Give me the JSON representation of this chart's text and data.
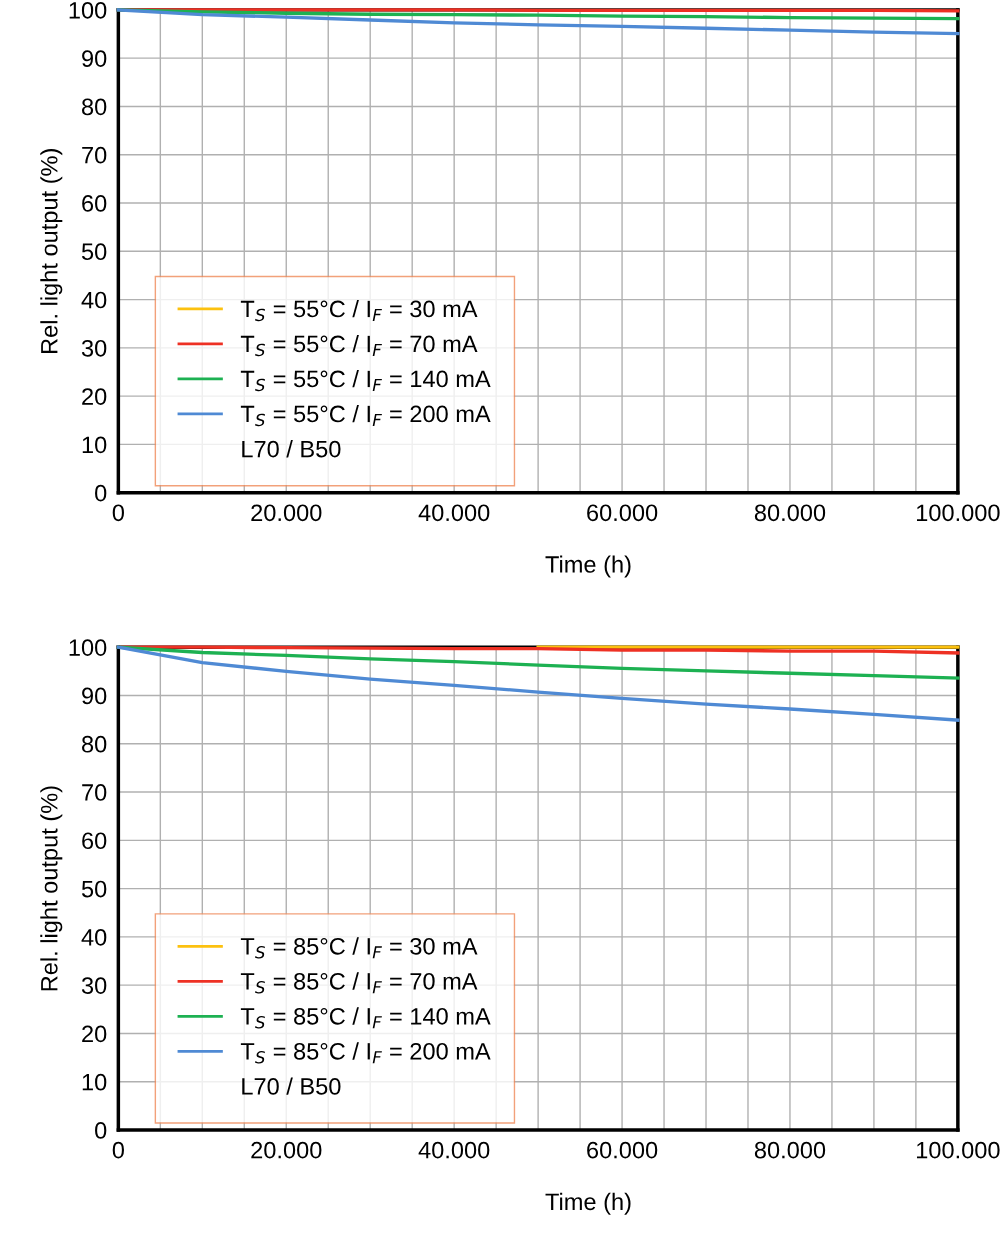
{
  "chart_data": [
    {
      "type": "line",
      "xlabel": "Time (h)",
      "ylabel": "Rel. light output (%)",
      "xlim": [
        0,
        100000
      ],
      "ylim": [
        0,
        100
      ],
      "xticks": [
        0,
        {
          "value": 5000,
          "label": null
        },
        {
          "value": 10000,
          "label": null
        },
        {
          "value": 15000,
          "label": null
        },
        {
          "value": 20000,
          "label": "20.000"
        },
        {
          "value": 25000,
          "label": null
        },
        {
          "value": 30000,
          "label": null
        },
        {
          "value": 35000,
          "label": null
        },
        {
          "value": 40000,
          "label": "40.000"
        },
        {
          "value": 45000,
          "label": null
        },
        {
          "value": 50000,
          "label": null
        },
        {
          "value": 55000,
          "label": null
        },
        {
          "value": 60000,
          "label": "60.000"
        },
        {
          "value": 65000,
          "label": null
        },
        {
          "value": 70000,
          "label": null
        },
        {
          "value": 75000,
          "label": null
        },
        {
          "value": 80000,
          "label": "80.000"
        },
        {
          "value": 85000,
          "label": null
        },
        {
          "value": 90000,
          "label": null
        },
        {
          "value": 95000,
          "label": null
        },
        {
          "value": 100000,
          "label": "100.000"
        }
      ],
      "yticks": [
        0,
        10,
        20,
        30,
        40,
        50,
        60,
        70,
        80,
        90,
        100
      ],
      "grid": true,
      "legend": "bottom left",
      "line_style": "solid",
      "marker": "none",
      "x": [
        0,
        10000,
        20000,
        30000,
        40000,
        50000,
        60000,
        70000,
        80000,
        90000,
        100000
      ],
      "series": [
        {
          "name": "T$_{S}$ = 55°C / I$_{F}$ = 30 mA",
          "color": "#fcc10f",
          "values": [
            null,
            null,
            null,
            null,
            null,
            null,
            null,
            null,
            null,
            null,
            null
          ]
        },
        {
          "name": "T$_{S}$ = 55°C / I$_{F}$ = 70 mA",
          "color": "#ee3124",
          "values": [
            100,
            100,
            100,
            100,
            100,
            99.9,
            99.9,
            99.9,
            99.9,
            99.9,
            99.8
          ]
        },
        {
          "name": "T$_{S}$ = 55°C / I$_{F}$ = 140 mA",
          "color": "#1db152",
          "values": [
            100,
            99.6,
            99.3,
            99.1,
            99.0,
            98.9,
            98.7,
            98.6,
            98.4,
            98.3,
            98.2
          ]
        },
        {
          "name": "T$_{S}$ = 55°C / I$_{F}$ = 200 mA",
          "color": "#4f8ad4",
          "values": [
            100,
            99.0,
            98.5,
            97.9,
            97.3,
            96.9,
            96.6,
            96.2,
            95.8,
            95.4,
            95.1
          ]
        }
      ],
      "annotations": [
        "L70 / B50"
      ]
    },
    {
      "type": "line",
      "xlabel": "Time (h)",
      "ylabel": "Rel. light output (%)",
      "xlim": [
        0,
        100000
      ],
      "ylim": [
        0,
        100
      ],
      "xticks": [
        0,
        {
          "value": 5000,
          "label": null
        },
        {
          "value": 10000,
          "label": null
        },
        {
          "value": 15000,
          "label": null
        },
        {
          "value": 20000,
          "label": "20.000"
        },
        {
          "value": 25000,
          "label": null
        },
        {
          "value": 30000,
          "label": null
        },
        {
          "value": 35000,
          "label": null
        },
        {
          "value": 40000,
          "label": "40.000"
        },
        {
          "value": 45000,
          "label": null
        },
        {
          "value": 50000,
          "label": null
        },
        {
          "value": 55000,
          "label": null
        },
        {
          "value": 60000,
          "label": "60.000"
        },
        {
          "value": 65000,
          "label": null
        },
        {
          "value": 70000,
          "label": null
        },
        {
          "value": 75000,
          "label": null
        },
        {
          "value": 80000,
          "label": "80.000"
        },
        {
          "value": 85000,
          "label": null
        },
        {
          "value": 90000,
          "label": null
        },
        {
          "value": 95000,
          "label": null
        },
        {
          "value": 100000,
          "label": "100.000"
        }
      ],
      "yticks": [
        0,
        10,
        20,
        30,
        40,
        50,
        60,
        70,
        80,
        90,
        100
      ],
      "grid": true,
      "legend": "bottom left",
      "line_style": "solid",
      "marker": "none",
      "x": [
        0,
        10000,
        20000,
        30000,
        40000,
        50000,
        60000,
        70000,
        80000,
        90000,
        100000
      ],
      "series": [
        {
          "name": "T$_{S}$ = 85°C / I$_{F}$ = 30 mA",
          "color": "#fcc10f",
          "values": [
            null,
            null,
            null,
            null,
            null,
            100,
            100,
            100,
            100,
            100,
            100
          ]
        },
        {
          "name": "T$_{S}$ = 85°C / I$_{F}$ = 70 mA",
          "color": "#ee3124",
          "values": [
            100,
            100,
            99.9,
            99.8,
            99.7,
            99.7,
            99.4,
            99.4,
            99.2,
            99.2,
            98.8
          ]
        },
        {
          "name": "T$_{S}$ = 85°C / I$_{F}$ = 140 mA",
          "color": "#1db152",
          "values": [
            100,
            98.9,
            98.3,
            97.6,
            97.0,
            96.3,
            95.6,
            95.1,
            94.6,
            94.1,
            93.6
          ]
        },
        {
          "name": "T$_{S}$ = 85°C / I$_{F}$ = 200 mA",
          "color": "#4f8ad4",
          "values": [
            100,
            96.8,
            95.0,
            93.4,
            92.1,
            90.7,
            89.4,
            88.2,
            87.2,
            86.1,
            84.9
          ]
        }
      ],
      "annotations": [
        "L70 / B50"
      ]
    }
  ]
}
